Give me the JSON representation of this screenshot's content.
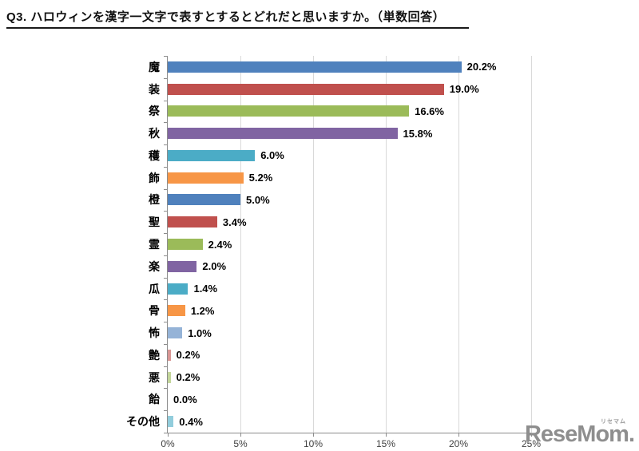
{
  "title": "Q3. ハロウィンを漢字一文字で表すとするとどれだと思いますか。（単数回答）",
  "chart_data": {
    "type": "bar",
    "orientation": "horizontal",
    "title": "Q3. ハロウィンを漢字一文字で表すとするとどれだと思いますか。（単数回答）",
    "categories": [
      "魔",
      "装",
      "祭",
      "秋",
      "穫",
      "飾",
      "橙",
      "聖",
      "霊",
      "楽",
      "瓜",
      "骨",
      "怖",
      "艶",
      "悪",
      "飴",
      "その他"
    ],
    "values": [
      20.2,
      19.0,
      16.6,
      15.8,
      6.0,
      5.2,
      5.0,
      3.4,
      2.4,
      2.0,
      1.4,
      1.2,
      1.0,
      0.2,
      0.2,
      0.0,
      0.4
    ],
    "value_labels": [
      "20.2%",
      "19.0%",
      "16.6%",
      "15.8%",
      "6.0%",
      "5.2%",
      "5.0%",
      "3.4%",
      "2.4%",
      "2.0%",
      "1.4%",
      "1.2%",
      "1.0%",
      "0.2%",
      "0.2%",
      "0.0%",
      "0.4%"
    ],
    "bar_colors": [
      "#4F81BD",
      "#C0504D",
      "#9BBB59",
      "#8064A2",
      "#4BACC6",
      "#F79646",
      "#4F81BD",
      "#C0504D",
      "#9BBB59",
      "#8064A2",
      "#4BACC6",
      "#F79646",
      "#95B3D7",
      "#D99694",
      "#C3D69B",
      "#B3A2C7",
      "#92CDDC"
    ],
    "xlim": [
      0,
      25
    ],
    "x_tick_labels": [
      "0%",
      "5%",
      "10%",
      "15%",
      "20%",
      "25%"
    ],
    "grid": true,
    "legend": false,
    "xlabel": "",
    "ylabel": ""
  },
  "watermark": {
    "text": "ReseMom.",
    "ruby": "リセマム"
  },
  "colors": {
    "axis": "#8c8c8c",
    "gridline": "#d9d9d9",
    "category_label": "#000000",
    "value_label": "#000000",
    "tick_label": "#3f3f3f",
    "logo": "#8e8e8e"
  }
}
